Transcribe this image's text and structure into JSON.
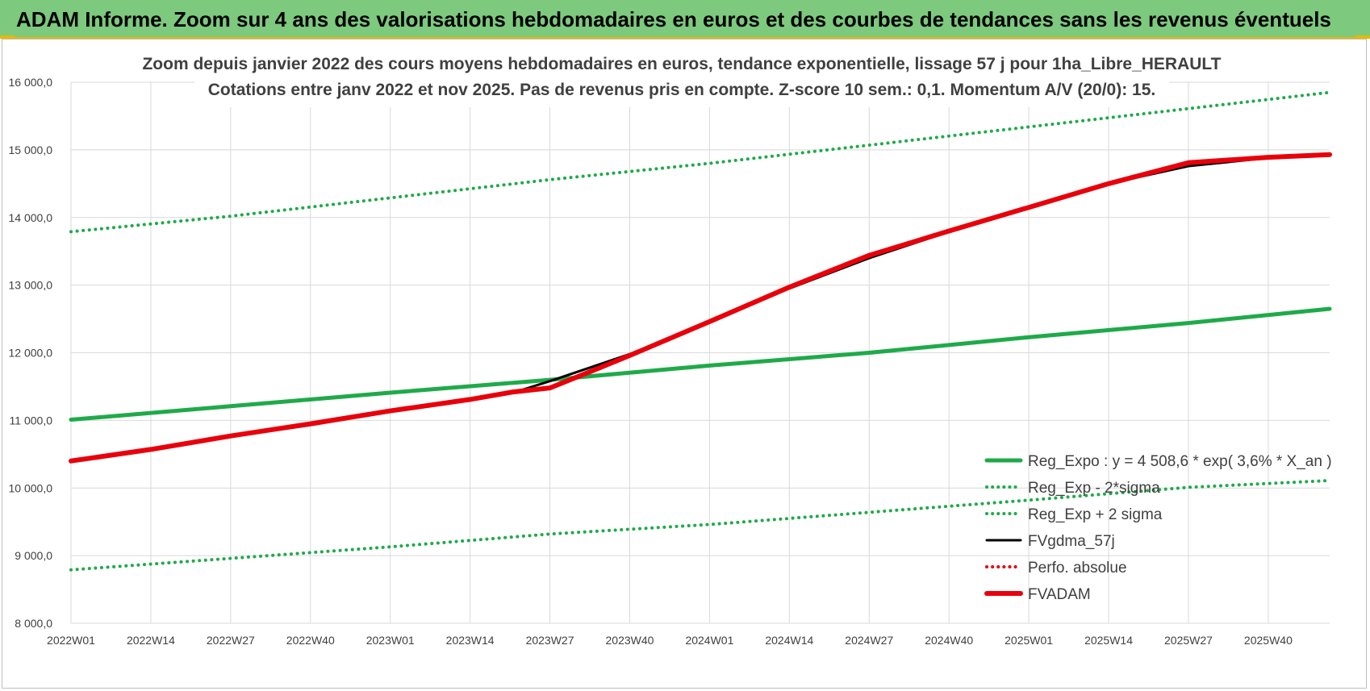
{
  "header": {
    "title": "ADAM Informe. Zoom sur 4 ans des valorisations hebdomadaires en euros et des courbes de tendances sans les revenus éventuels"
  },
  "chart_data": {
    "type": "line",
    "title": "Zoom depuis janvier 2022 des cours moyens hebdomadaires en euros, tendance exponentielle, lissage 57 j pour 1ha_Libre_HERAULT",
    "subtitle": "Cotations entre janv 2022 et nov 2025. Pas de revenus pris en compte. Z-score 10 sem.: 0,1. Momentum A/V (20/0): 15.",
    "xlabel": "",
    "ylabel": "",
    "categories": [
      "2022W01",
      "2022W14",
      "2022W27",
      "2022W40",
      "2023W01",
      "2023W14",
      "2023W27",
      "2023W40",
      "2024W01",
      "2024W14",
      "2024W27",
      "2024W40",
      "2025W01",
      "2025W14",
      "2025W27",
      "2025W40"
    ],
    "y_ticks": [
      "8 000,0",
      "9 000,0",
      "10 000,0",
      "11 000,0",
      "12 000,0",
      "13 000,0",
      "14 000,0",
      "15 000,0",
      "16 000,0"
    ],
    "ylim": [
      8000,
      16000
    ],
    "grid": true,
    "legend_position": "bottom-right",
    "series": [
      {
        "name": "Reg_Expo : y = 4 508,6 * exp( 3,6% *  X_an )",
        "color": "#1faa4a",
        "style": "solid",
        "points": [
          [
            0,
            11010
          ],
          [
            26,
            11210
          ],
          [
            52,
            11410
          ],
          [
            78,
            11600
          ],
          [
            104,
            11810
          ],
          [
            130,
            12000
          ],
          [
            156,
            12230
          ],
          [
            182,
            12440
          ],
          [
            205,
            12650
          ]
        ]
      },
      {
        "name": "Reg_Exp - 2*sigma",
        "color": "#1faa4a",
        "style": "dotted",
        "points": [
          [
            0,
            8790
          ],
          [
            26,
            8960
          ],
          [
            52,
            9130
          ],
          [
            78,
            9320
          ],
          [
            104,
            9460
          ],
          [
            130,
            9640
          ],
          [
            156,
            9820
          ],
          [
            182,
            10010
          ],
          [
            205,
            10110
          ]
        ]
      },
      {
        "name": "Reg_Exp + 2 sigma",
        "color": "#1faa4a",
        "style": "dotted",
        "points": [
          [
            0,
            13790
          ],
          [
            26,
            14020
          ],
          [
            52,
            14290
          ],
          [
            78,
            14560
          ],
          [
            104,
            14800
          ],
          [
            130,
            15070
          ],
          [
            156,
            15340
          ],
          [
            182,
            15610
          ],
          [
            205,
            15850
          ]
        ]
      },
      {
        "name": "FVgdma_57j",
        "color": "#000000",
        "style": "solid",
        "points": [
          [
            0,
            10400
          ],
          [
            13,
            10560
          ],
          [
            26,
            10760
          ],
          [
            39,
            10930
          ],
          [
            52,
            11130
          ],
          [
            65,
            11300
          ],
          [
            72,
            11410
          ],
          [
            78,
            11580
          ],
          [
            91,
            11980
          ],
          [
            104,
            12450
          ],
          [
            117,
            12950
          ],
          [
            130,
            13400
          ],
          [
            143,
            13790
          ],
          [
            156,
            14150
          ],
          [
            169,
            14500
          ],
          [
            182,
            14760
          ],
          [
            195,
            14880
          ],
          [
            205,
            14930
          ]
        ]
      },
      {
        "name": "Perfo. absolue",
        "color": "#e8000b",
        "style": "dotted",
        "points": []
      },
      {
        "name": "FVADAM",
        "color": "#e8000b",
        "style": "solid",
        "points": [
          [
            0,
            10400
          ],
          [
            13,
            10570
          ],
          [
            26,
            10770
          ],
          [
            39,
            10950
          ],
          [
            52,
            11140
          ],
          [
            65,
            11310
          ],
          [
            72,
            11420
          ],
          [
            78,
            11480
          ],
          [
            84,
            11700
          ],
          [
            91,
            11960
          ],
          [
            104,
            12460
          ],
          [
            117,
            12970
          ],
          [
            130,
            13440
          ],
          [
            143,
            13800
          ],
          [
            156,
            14150
          ],
          [
            169,
            14500
          ],
          [
            182,
            14810
          ],
          [
            195,
            14890
          ],
          [
            205,
            14930
          ]
        ]
      }
    ]
  }
}
